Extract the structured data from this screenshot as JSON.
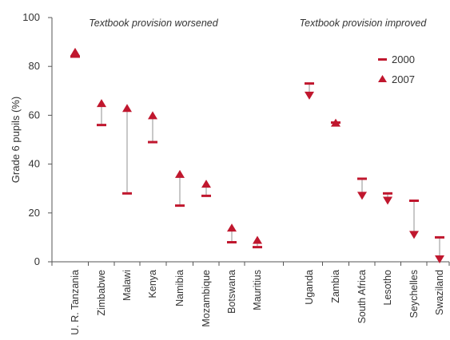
{
  "chart_data": {
    "type": "dumbbell",
    "ylabel": "Grade 6 pupils (%)",
    "ylim": [
      0,
      100
    ],
    "yticks": [
      0,
      20,
      40,
      60,
      80,
      100
    ],
    "categories": [
      "U. R. Tanzania",
      "Zimbabwe",
      "Malawi",
      "Kenya",
      "Namibia",
      "Mozambique",
      "Botswana",
      "Mauritius",
      "Uganda",
      "Zambia",
      "South Africa",
      "Lesotho",
      "Seychelles",
      "Swaziland"
    ],
    "series": [
      {
        "name": "2000",
        "marker": "dash",
        "values": [
          84,
          56,
          28,
          49,
          23,
          27,
          8,
          6,
          73,
          57,
          34,
          28,
          25,
          10
        ]
      },
      {
        "name": "2007",
        "marker": "triangle",
        "values": [
          86,
          65,
          63,
          60,
          36,
          32,
          14,
          9,
          68,
          57,
          27,
          25,
          11,
          1
        ]
      }
    ],
    "annotations": [
      "Textbook provision worsened",
      "Textbook provision improved"
    ],
    "legend_position": "top-right",
    "grid": false
  },
  "colors": {
    "marker": "#c0172e",
    "connector": "#c8c8c8",
    "axis": "#555555"
  }
}
